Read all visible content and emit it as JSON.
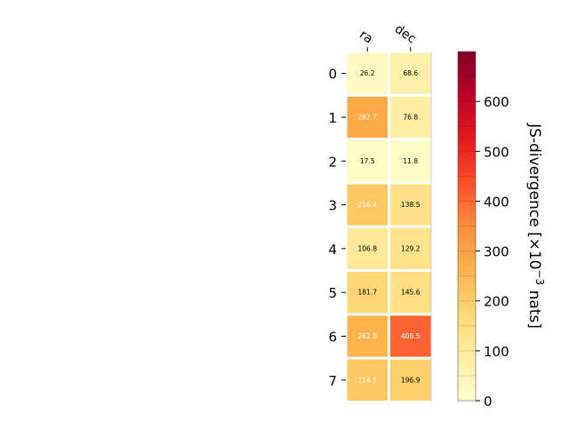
{
  "chart_data": {
    "type": "heatmap",
    "x_categories": [
      "ra",
      "dec"
    ],
    "y_categories": [
      "0",
      "1",
      "2",
      "3",
      "4",
      "5",
      "6",
      "7"
    ],
    "values": [
      [
        26.2,
        68.6
      ],
      [
        282.7,
        76.8
      ],
      [
        17.5,
        11.8
      ],
      [
        216.4,
        138.5
      ],
      [
        106.8,
        129.2
      ],
      [
        181.7,
        145.6
      ],
      [
        262.8,
        408.5
      ],
      [
        214.5,
        196.9
      ]
    ],
    "colorbar": {
      "label": "JS-divergence [×10",
      "label_exponent": "−3",
      "label_suffix": " nats]",
      "range": [
        0,
        700
      ],
      "ticks": [
        0,
        100,
        200,
        300,
        400,
        500,
        600
      ],
      "colormap": "YlOrRd"
    },
    "annotation_text_threshold": 200
  }
}
